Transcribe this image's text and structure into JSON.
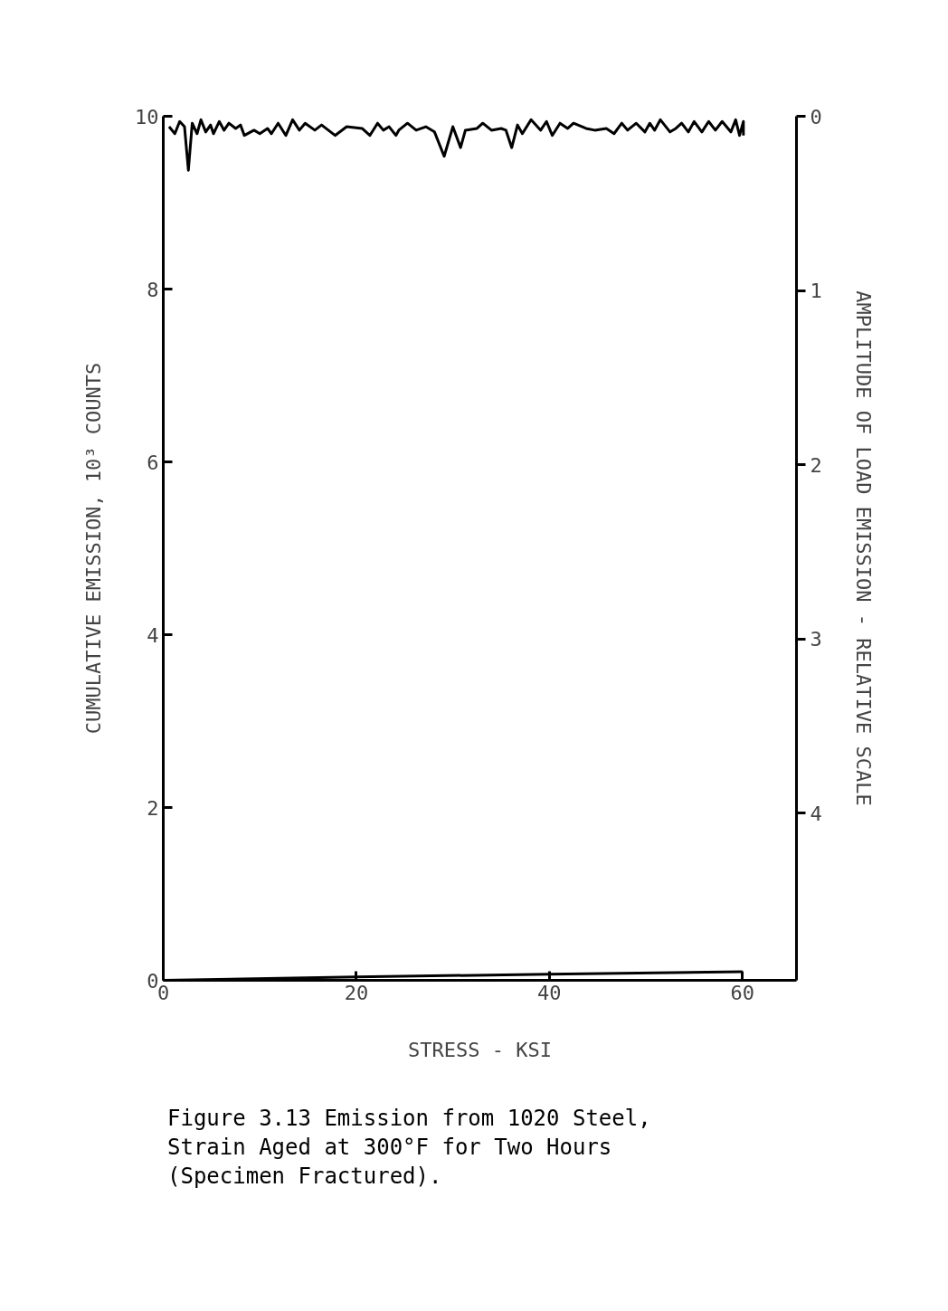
{
  "chart_data": {
    "type": "line",
    "xlabel": "STRESS - KSI",
    "ylabel": "CUMULATIVE EMISSION, 10³ COUNTS",
    "y2label": "AMPLITUDE OF LOAD EMISSION - RELATIVE SCALE",
    "xlim": [
      0,
      65.6
    ],
    "xticks": [
      0,
      20,
      40,
      60
    ],
    "ylim": [
      0,
      10
    ],
    "yticks": [
      0,
      2,
      4,
      6,
      8,
      10
    ],
    "y2lim": [
      4.96,
      0
    ],
    "y2ticks": [
      0,
      1,
      2,
      3,
      4
    ],
    "grid": false,
    "series": [
      {
        "color": "#000000",
        "x": [
          0,
          20,
          40,
          60
        ],
        "values": [
          0,
          0.04,
          0.07,
          0.1
        ]
      },
      {
        "color": "#000000",
        "axis": "y2",
        "x": [
          0.6,
          1.2,
          1.7,
          2.2,
          2.6,
          3.0,
          3.5,
          3.9,
          4.4,
          4.9,
          5.2,
          5.8,
          6.3,
          6.8,
          7.5,
          8.0,
          8.4,
          9.4,
          10.0,
          10.8,
          11.2,
          11.9,
          12.7,
          13.4,
          14.1,
          14.7,
          15.7,
          16.4,
          17.8,
          19.0,
          20.6,
          21.4,
          22.2,
          22.8,
          23.4,
          24.1,
          24.4,
          25.3,
          26.2,
          27.2,
          28.1,
          29.1,
          30.0,
          30.8,
          31.3,
          32.5,
          33.1,
          34.0,
          35.0,
          35.5,
          36.1,
          36.7,
          37.2,
          38.1,
          39.1,
          39.7,
          40.3,
          41.1,
          41.9,
          42.5,
          43.8,
          44.7,
          45.9,
          46.7,
          47.5,
          48.1,
          49.0,
          49.9,
          50.4,
          50.9,
          51.5,
          52.5,
          53.1,
          53.7,
          54.4,
          55.0,
          55.8,
          56.5,
          57.2,
          57.9,
          58.8,
          59.3,
          59.7,
          60.1,
          60.1
        ],
        "values": [
          0.06,
          0.1,
          0.03,
          0.06,
          0.31,
          0.04,
          0.1,
          0.02,
          0.09,
          0.05,
          0.1,
          0.03,
          0.08,
          0.04,
          0.07,
          0.05,
          0.11,
          0.08,
          0.1,
          0.07,
          0.1,
          0.04,
          0.11,
          0.02,
          0.08,
          0.04,
          0.08,
          0.05,
          0.11,
          0.06,
          0.07,
          0.11,
          0.04,
          0.08,
          0.06,
          0.11,
          0.08,
          0.04,
          0.08,
          0.06,
          0.09,
          0.23,
          0.06,
          0.18,
          0.08,
          0.07,
          0.04,
          0.08,
          0.07,
          0.08,
          0.18,
          0.05,
          0.1,
          0.02,
          0.08,
          0.03,
          0.11,
          0.04,
          0.07,
          0.04,
          0.07,
          0.08,
          0.07,
          0.1,
          0.04,
          0.08,
          0.04,
          0.09,
          0.04,
          0.08,
          0.02,
          0.09,
          0.07,
          0.04,
          0.09,
          0.03,
          0.09,
          0.03,
          0.08,
          0.03,
          0.09,
          0.02,
          0.11,
          0.03,
          0.11
        ]
      }
    ],
    "annotations": [
      "Figure 3.13  Emission from 1020 Steel, Strain Aged at 300°F for Two Hours (Specimen Fractured)."
    ]
  }
}
